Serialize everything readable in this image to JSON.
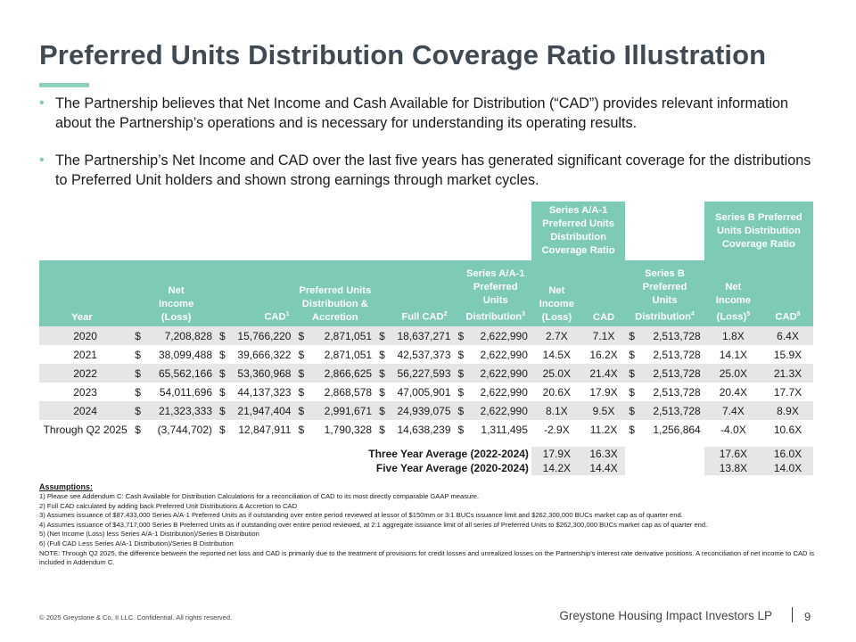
{
  "title": "Preferred Units Distribution Coverage Ratio Illustration",
  "bullets": [
    "The Partnership believes that Net Income and Cash Available for Distribution (“CAD”) provides relevant information about the Partnership’s operations and is necessary for understanding its operating results.",
    "The Partnership’s Net Income and CAD over the last five years has generated significant coverage for the distributions to Preferred Unit holders and shown strong earnings through market cycles."
  ],
  "table": {
    "group_headers": {
      "series_a": "Series A/A-1 Preferred Units Distribution Coverage Ratio",
      "series_b": "Series B Preferred Units Distribution Coverage Ratio"
    },
    "headers": {
      "year": "Year",
      "net_income": "Net Income (Loss)",
      "cad": "CAD",
      "cad_sup": "1",
      "pref_dist": "Preferred Units Distribution & Accretion",
      "full_cad": "Full CAD",
      "full_cad_sup": "2",
      "series_a_dist": "Series A/A-1 Preferred Units Distribution",
      "series_a_dist_sup": "3",
      "a_net_income": "Net Income (Loss)",
      "a_cad": "CAD",
      "series_b_dist": "Series B Preferred Units Distribution",
      "series_b_dist_sup": "4",
      "b_net_income": "Net Income (Loss)",
      "b_net_income_sup": "5",
      "b_cad": "CAD",
      "b_cad_sup": "6"
    },
    "currency": "$",
    "rows": [
      {
        "year": "2020",
        "net_income": "7,208,828",
        "cad": "15,766,220",
        "pref_dist": "2,871,051",
        "full_cad": "18,637,271",
        "series_a_dist": "2,622,990",
        "a_ni": "2.7X",
        "a_cad": "7.1X",
        "series_b_dist": "2,513,728",
        "b_ni": "1.8X",
        "b_cad": "6.4X"
      },
      {
        "year": "2021",
        "net_income": "38,099,488",
        "cad": "39,666,322",
        "pref_dist": "2,871,051",
        "full_cad": "42,537,373",
        "series_a_dist": "2,622,990",
        "a_ni": "14.5X",
        "a_cad": "16.2X",
        "series_b_dist": "2,513,728",
        "b_ni": "14.1X",
        "b_cad": "15.9X"
      },
      {
        "year": "2022",
        "net_income": "65,562,166",
        "cad": "53,360,968",
        "pref_dist": "2,866,625",
        "full_cad": "56,227,593",
        "series_a_dist": "2,622,990",
        "a_ni": "25.0X",
        "a_cad": "21.4X",
        "series_b_dist": "2,513,728",
        "b_ni": "25.0X",
        "b_cad": "21.3X"
      },
      {
        "year": "2023",
        "net_income": "54,011,696",
        "cad": "44,137,323",
        "pref_dist": "2,868,578",
        "full_cad": "47,005,901",
        "series_a_dist": "2,622,990",
        "a_ni": "20.6X",
        "a_cad": "17.9X",
        "series_b_dist": "2,513,728",
        "b_ni": "20.4X",
        "b_cad": "17.7X"
      },
      {
        "year": "2024",
        "net_income": "21,323,333",
        "cad": "21,947,404",
        "pref_dist": "2,991,671",
        "full_cad": "24,939,075",
        "series_a_dist": "2,622,990",
        "a_ni": "8.1X",
        "a_cad": "9.5X",
        "series_b_dist": "2,513,728",
        "b_ni": "7.4X",
        "b_cad": "8.9X"
      },
      {
        "year": "Through Q2 2025",
        "net_income": "(3,744,702)",
        "cad": "12,847,911",
        "pref_dist": "1,790,328",
        "full_cad": "14,638,239",
        "series_a_dist": "1,311,495",
        "a_ni": "-2.9X",
        "a_cad": "11.2X",
        "series_b_dist": "1,256,864",
        "b_ni": "-4.0X",
        "b_cad": "10.6X"
      }
    ],
    "averages": [
      {
        "label": "Three Year Average (2022-2024)",
        "a_ni": "17.9X",
        "a_cad": "16.3X",
        "b_ni": "17.6X",
        "b_cad": "16.0X"
      },
      {
        "label": "Five Year Average (2020-2024)",
        "a_ni": "14.2X",
        "a_cad": "14.4X",
        "b_ni": "13.8X",
        "b_cad": "14.0X"
      }
    ]
  },
  "assumptions": {
    "heading": "Assumptions:",
    "notes": [
      "1) Please see Addendum C: Cash Available for Distribution Calculations for a reconciliation of CAD to its most directly comparable GAAP measure.",
      "2) Full CAD calculated by adding back Preferred Unit Distributions & Accretion to CAD",
      "3) Assumes issuance of $87,433,000 Series A/A-1 Preferred Units as if outstanding over entire period reviewed at lessor of $150mm or 3:1 BUCs issuance limit and $262,300,000 BUCs market cap as of quarter end.",
      "4) Assumes issuance of $43,717,000 Series B Preferred Units as if outstanding over entire period reviewed, at  2:1 aggregate issuance limit of all series of Preferred Units to $262,300,000 BUCs market cap as of quarter end.",
      "5) (Net Income (Loss) less Series A/A-1 Distribution)/Series B Distribution",
      "6) (Full CAD Less Series A/A-1 Distribution)/Series B Distribution",
      "NOTE: Through Q2 2025, the difference between the reported net loss and CAD is primarily due to the treatment of provisions for credit losses and unrealized losses on the Partnership’s interest rate derivative positions. A reconciliation of net income to CAD is included in Addendum C."
    ]
  },
  "footer": {
    "copyright": "© 2025 Greystone & Co. II LLC. Confidential. All rights reserved.",
    "company": "Greystone Housing Impact Investors LP",
    "page": "9"
  },
  "colors": {
    "accent": "#7dcab6",
    "title": "#3f4a55",
    "stripe": "#e6e6e6"
  }
}
